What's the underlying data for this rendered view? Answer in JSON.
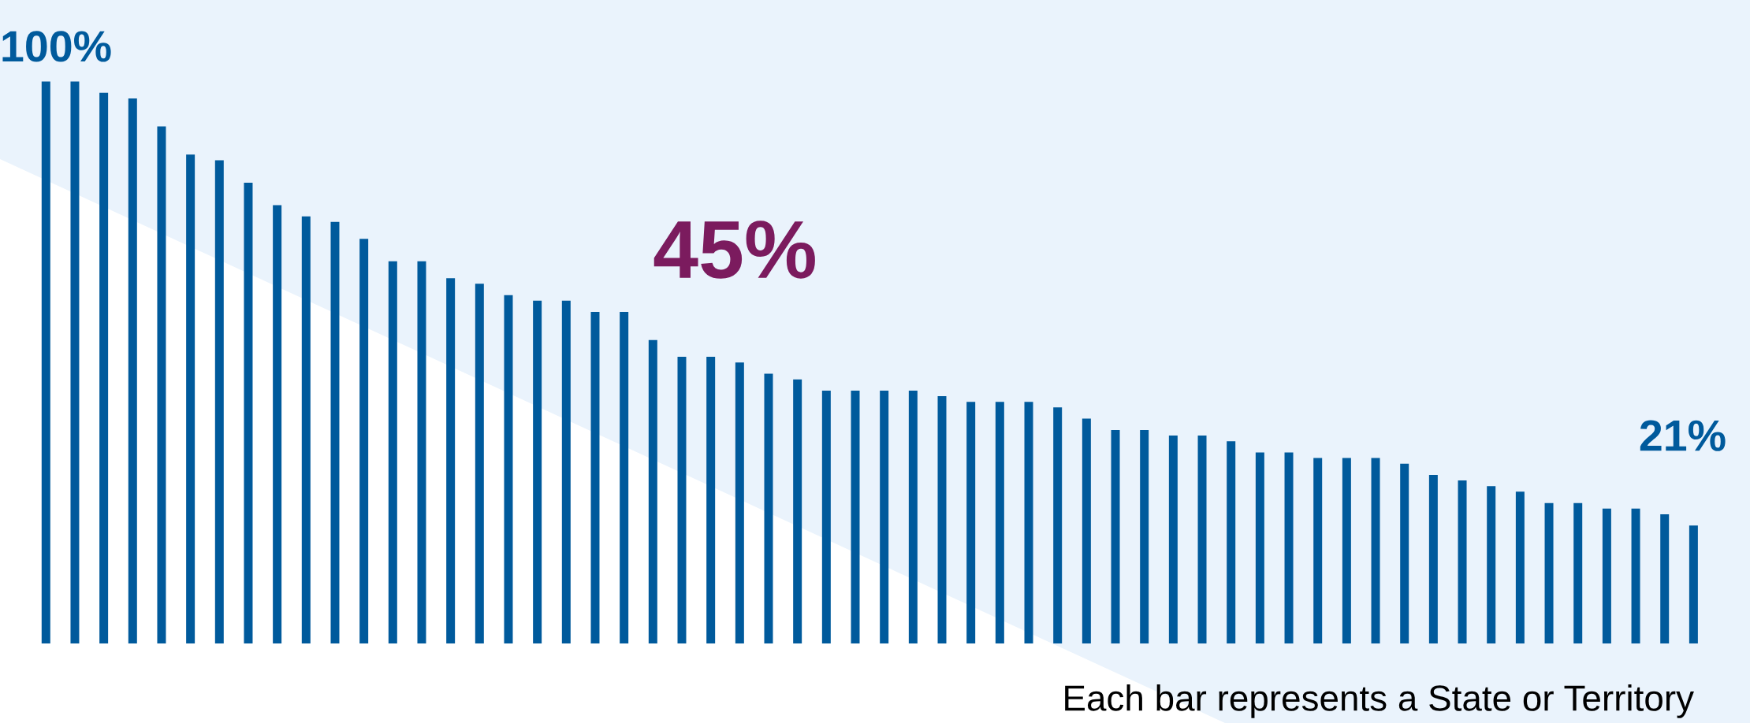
{
  "chart_data": {
    "type": "bar",
    "categories": [
      null,
      null,
      null,
      null,
      null,
      null,
      null,
      null,
      null,
      null,
      null,
      null,
      null,
      null,
      null,
      null,
      null,
      null,
      null,
      null,
      null,
      null,
      null,
      null,
      null,
      null,
      null,
      null,
      null,
      null,
      null,
      null,
      null,
      null,
      null,
      null,
      null,
      null,
      null,
      null,
      null,
      null,
      null,
      null,
      null,
      null,
      null,
      null,
      null,
      null,
      null,
      null,
      null,
      null,
      null,
      null,
      null,
      null
    ],
    "values": [
      100,
      100,
      98,
      97,
      92,
      87,
      86,
      82,
      78,
      76,
      75,
      72,
      68,
      68,
      65,
      64,
      62,
      61,
      61,
      59,
      59,
      54,
      51,
      51,
      50,
      48,
      47,
      45,
      45,
      45,
      45,
      44,
      43,
      43,
      43,
      42,
      40,
      38,
      38,
      37,
      37,
      36,
      34,
      34,
      33,
      33,
      33,
      32,
      30,
      29,
      28,
      27,
      25,
      25,
      24,
      24,
      23,
      21
    ],
    "value_labels": [
      "100%",
      null,
      null,
      null,
      null,
      null,
      null,
      null,
      null,
      null,
      null,
      null,
      null,
      null,
      null,
      null,
      null,
      null,
      null,
      null,
      null,
      null,
      null,
      null,
      null,
      null,
      null,
      null,
      null,
      null,
      null,
      null,
      null,
      null,
      null,
      null,
      null,
      null,
      null,
      null,
      null,
      null,
      null,
      null,
      null,
      null,
      null,
      null,
      null,
      null,
      null,
      null,
      null,
      null,
      null,
      null,
      null,
      "21%"
    ],
    "color": "#005a9c",
    "tick_labels": false,
    "grid": false,
    "legend": false,
    "annotations": [
      "45%",
      "Each bar represents a State or Territory"
    ]
  }
}
